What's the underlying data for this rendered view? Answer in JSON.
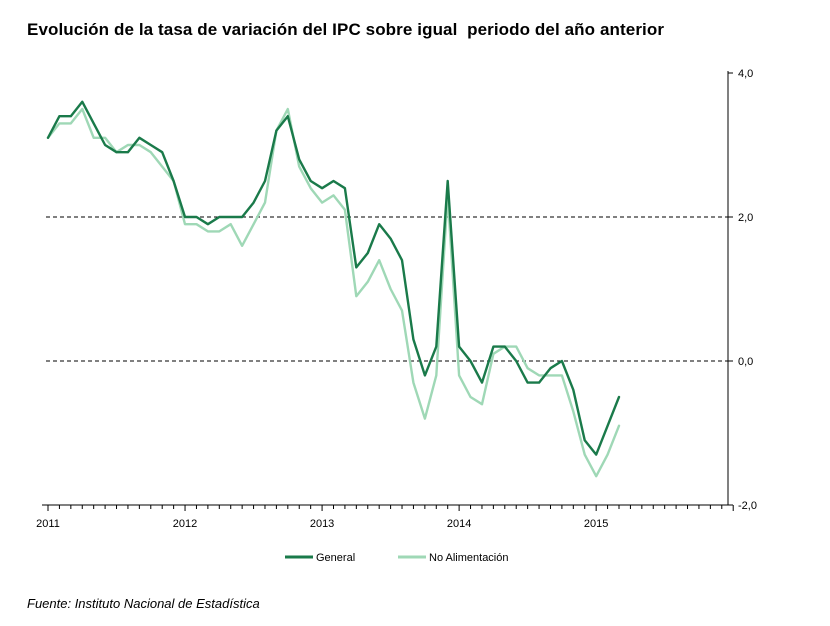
{
  "title": "Evolución de la tasa de variación del IPC sobre igual  periodo del año anterior",
  "source": "Fuente: Instituto Nacional de Estadística",
  "chart_data": {
    "type": "line",
    "x_start": "2011-01",
    "x_labels": [
      "2011",
      "2012",
      "2013",
      "2014",
      "2015"
    ],
    "y_ticks": [
      "4,0",
      "2,0",
      "0,0",
      "-2,0"
    ],
    "ylim": [
      -2,
      4
    ],
    "y_axis_side": "right",
    "dashed_reference_lines": [
      2,
      0
    ],
    "legend_position": "bottom-center",
    "series": [
      {
        "name": "General",
        "color": "#1a7a4a",
        "values": [
          3.1,
          3.4,
          3.4,
          3.6,
          3.3,
          3.0,
          2.9,
          2.9,
          3.1,
          3.0,
          2.9,
          2.5,
          2.0,
          2.0,
          1.9,
          2.0,
          2.0,
          2.0,
          2.2,
          2.5,
          3.2,
          3.4,
          2.8,
          2.5,
          2.4,
          2.5,
          2.4,
          1.3,
          1.5,
          1.9,
          1.7,
          1.4,
          0.3,
          -0.2,
          0.2,
          2.5,
          0.2,
          0.0,
          -0.3,
          0.2,
          0.2,
          0.0,
          -0.3,
          -0.3,
          -0.1,
          0.0,
          -0.4,
          -1.1,
          -1.3,
          -0.9,
          -0.5
        ]
      },
      {
        "name": "No Alimentación",
        "color": "#9fd8b6",
        "values": [
          3.1,
          3.3,
          3.3,
          3.5,
          3.1,
          3.1,
          2.9,
          3.0,
          3.0,
          2.9,
          2.7,
          2.5,
          1.9,
          1.9,
          1.8,
          1.8,
          1.9,
          1.6,
          1.9,
          2.2,
          3.2,
          3.5,
          2.7,
          2.4,
          2.2,
          2.3,
          2.1,
          0.9,
          1.1,
          1.4,
          1.0,
          0.7,
          -0.3,
          -0.8,
          -0.2,
          2.3,
          -0.2,
          -0.5,
          -0.6,
          0.1,
          0.2,
          0.2,
          -0.1,
          -0.2,
          -0.2,
          -0.2,
          -0.7,
          -1.3,
          -1.6,
          -1.3,
          -0.9
        ]
      }
    ]
  }
}
